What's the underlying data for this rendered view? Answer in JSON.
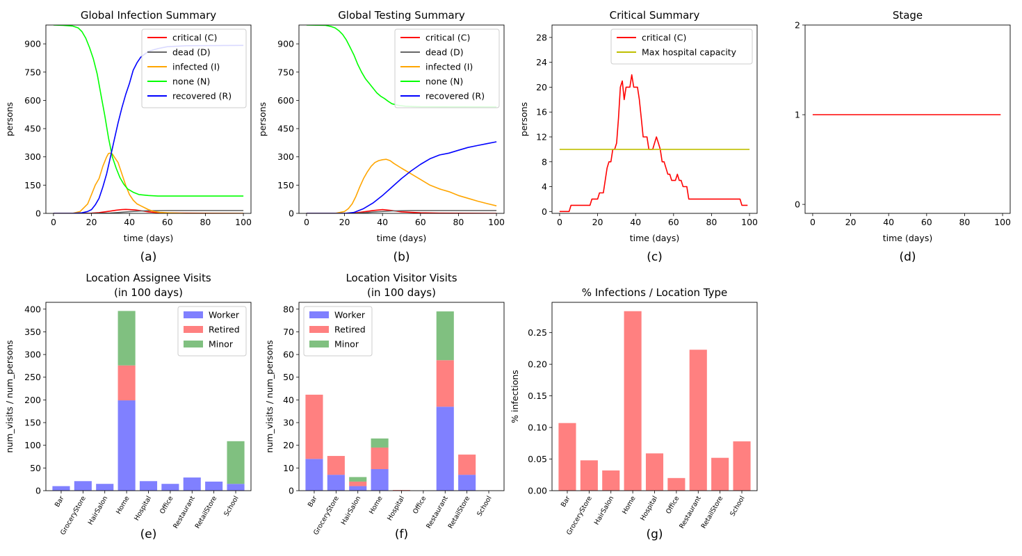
{
  "chart_data": [
    {
      "id": "a",
      "type": "line",
      "title": "Global Infection Summary",
      "xlabel": "time (days)",
      "ylabel": "persons",
      "caption": "(a)",
      "xlim": [
        -4,
        104
      ],
      "ylim": [
        0,
        1000
      ],
      "xticks": [
        0,
        20,
        40,
        60,
        80,
        100
      ],
      "yticks": [
        0,
        150,
        300,
        450,
        600,
        750,
        900
      ],
      "legend_position": "top-right",
      "series": [
        {
          "name": "critical (C)",
          "color": "#ff0000",
          "x": [
            0,
            10,
            20,
            24,
            27,
            30,
            33,
            36,
            38,
            40,
            43,
            46,
            50,
            55,
            60,
            70,
            100
          ],
          "y": [
            0,
            0,
            1,
            4,
            8,
            12,
            17,
            20,
            21,
            20,
            18,
            14,
            8,
            4,
            2,
            1,
            0
          ]
        },
        {
          "name": "dead (D)",
          "color": "#666666",
          "x": [
            0,
            20,
            30,
            35,
            40,
            45,
            50,
            60,
            100
          ],
          "y": [
            0,
            0,
            2,
            5,
            9,
            12,
            14,
            15,
            15
          ]
        },
        {
          "name": "infected (I)",
          "color": "#ffa500",
          "x": [
            0,
            10,
            14,
            16,
            18,
            20,
            22,
            24,
            26,
            28,
            29,
            30,
            31,
            32,
            33,
            34,
            36,
            38,
            40,
            42,
            44,
            46,
            48,
            50,
            53,
            56,
            60,
            65,
            70,
            100
          ],
          "y": [
            0,
            0,
            10,
            30,
            50,
            100,
            150,
            185,
            250,
            300,
            318,
            320,
            315,
            300,
            285,
            270,
            210,
            150,
            100,
            70,
            50,
            40,
            30,
            20,
            10,
            5,
            3,
            1,
            0,
            0
          ]
        },
        {
          "name": "none (N)",
          "color": "#00ff00",
          "x": [
            0,
            5,
            10,
            13,
            15,
            17,
            19,
            21,
            23,
            25,
            27,
            29,
            31,
            33,
            35,
            37,
            39,
            42,
            45,
            50,
            55,
            60,
            100
          ],
          "y": [
            1000,
            998,
            995,
            985,
            965,
            930,
            880,
            820,
            740,
            630,
            520,
            400,
            300,
            240,
            190,
            155,
            130,
            112,
            100,
            95,
            92,
            92,
            92
          ]
        },
        {
          "name": "recovered (R)",
          "color": "#0000ff",
          "x": [
            0,
            10,
            15,
            18,
            20,
            22,
            24,
            26,
            28,
            30,
            32,
            34,
            36,
            38,
            40,
            42,
            44,
            46,
            48,
            50,
            55,
            60,
            70,
            100
          ],
          "y": [
            0,
            0,
            3,
            10,
            20,
            45,
            80,
            140,
            210,
            300,
            390,
            480,
            560,
            630,
            690,
            760,
            800,
            830,
            845,
            860,
            875,
            885,
            890,
            892
          ]
        }
      ]
    },
    {
      "id": "b",
      "type": "line",
      "title": "Global Testing Summary",
      "xlabel": "time (days)",
      "ylabel": "persons",
      "caption": "(b)",
      "xlim": [
        -4,
        104
      ],
      "ylim": [
        0,
        1000
      ],
      "xticks": [
        0,
        20,
        40,
        60,
        80,
        100
      ],
      "yticks": [
        0,
        150,
        300,
        450,
        600,
        750,
        900
      ],
      "legend_position": "top-right",
      "series": [
        {
          "name": "critical (C)",
          "color": "#ff0000",
          "x": [
            0,
            20,
            25,
            30,
            35,
            40,
            45,
            50,
            60,
            70,
            100
          ],
          "y": [
            0,
            0,
            2,
            8,
            15,
            20,
            15,
            8,
            3,
            1,
            0
          ]
        },
        {
          "name": "dead (D)",
          "color": "#666666",
          "x": [
            0,
            25,
            30,
            35,
            40,
            45,
            50,
            55,
            60,
            100
          ],
          "y": [
            0,
            0,
            3,
            7,
            10,
            13,
            14,
            15,
            15,
            15
          ]
        },
        {
          "name": "infected (I)",
          "color": "#ffa500",
          "x": [
            0,
            15,
            20,
            22,
            24,
            26,
            28,
            30,
            32,
            34,
            36,
            38,
            40,
            42,
            44,
            46,
            50,
            55,
            60,
            65,
            70,
            75,
            80,
            85,
            90,
            95,
            100
          ],
          "y": [
            0,
            0,
            10,
            25,
            50,
            90,
            140,
            185,
            220,
            250,
            270,
            280,
            285,
            287,
            280,
            265,
            240,
            210,
            180,
            150,
            130,
            115,
            95,
            80,
            65,
            52,
            40
          ]
        },
        {
          "name": "none (N)",
          "color": "#00ff00",
          "x": [
            0,
            10,
            13,
            15,
            17,
            19,
            21,
            23,
            25,
            27,
            29,
            31,
            33,
            35,
            37,
            39,
            41,
            43,
            45,
            48,
            52,
            56,
            60,
            100
          ],
          "y": [
            1000,
            998,
            992,
            985,
            970,
            950,
            920,
            880,
            840,
            790,
            750,
            715,
            690,
            665,
            640,
            622,
            610,
            595,
            582,
            574,
            569,
            567,
            566,
            565
          ]
        },
        {
          "name": "recovered (R)",
          "color": "#0000ff",
          "x": [
            0,
            20,
            25,
            30,
            35,
            40,
            45,
            50,
            55,
            60,
            65,
            70,
            75,
            80,
            85,
            90,
            95,
            100
          ],
          "y": [
            0,
            0,
            5,
            25,
            55,
            95,
            140,
            185,
            225,
            260,
            290,
            310,
            320,
            335,
            350,
            360,
            370,
            380
          ]
        }
      ]
    },
    {
      "id": "c",
      "type": "line",
      "title": "Critical Summary",
      "xlabel": "time (days)",
      "ylabel": "persons",
      "caption": "(c)",
      "xlim": [
        -4,
        104
      ],
      "ylim": [
        -0.3,
        30
      ],
      "xticks": [
        0,
        20,
        40,
        60,
        80,
        100
      ],
      "yticks": [
        0,
        4,
        8,
        12,
        16,
        20,
        24,
        28
      ],
      "legend_position": "top-right",
      "series": [
        {
          "name": "critical (C)",
          "color": "#ff0000",
          "x": [
            0,
            5,
            6,
            12,
            13,
            16,
            17,
            19,
            20,
            21,
            22,
            23,
            24,
            25,
            26,
            27,
            28,
            29,
            30,
            31,
            32,
            33,
            34,
            35,
            36,
            37,
            38,
            39,
            40,
            41,
            42,
            43,
            44,
            45,
            46,
            47,
            48,
            49,
            50,
            51,
            52,
            53,
            54,
            55,
            56,
            57,
            58,
            59,
            60,
            61,
            62,
            63,
            64,
            65,
            66,
            67,
            68,
            95,
            96,
            99
          ],
          "y": [
            0,
            0,
            1,
            1,
            1,
            1,
            2,
            2,
            2,
            3,
            3,
            3,
            5,
            7,
            8,
            8,
            10,
            10,
            11,
            15,
            20,
            21,
            18,
            20,
            20,
            20,
            22,
            20,
            20,
            20,
            18,
            15,
            12,
            12,
            12,
            10,
            10,
            10,
            11,
            12,
            11,
            10,
            8,
            8,
            7,
            6,
            6,
            5,
            5,
            5,
            6,
            5,
            5,
            4,
            4,
            4,
            2,
            2,
            1,
            1
          ]
        },
        {
          "name": "Max hospital capacity",
          "color": "#bfbf00",
          "x": [
            0,
            100
          ],
          "y": [
            10,
            10
          ]
        }
      ]
    },
    {
      "id": "d",
      "type": "line",
      "title": "Stage",
      "xlabel": "time (days)",
      "ylabel": "",
      "caption": "(d)",
      "xlim": [
        -4,
        104
      ],
      "ylim": [
        -0.1,
        2
      ],
      "xticks": [
        0,
        20,
        40,
        60,
        80,
        100
      ],
      "yticks": [
        0,
        1,
        2
      ],
      "series": [
        {
          "color": "#ff0000",
          "x": [
            0,
            99
          ],
          "y": [
            1,
            1
          ]
        }
      ]
    },
    {
      "id": "e",
      "type": "bar",
      "title": "Location Assignee Visits",
      "subtitle": "(in 100 days)",
      "xlabel": "",
      "ylabel": "num_visits / num_persons",
      "caption": "(e)",
      "ylim": [
        0,
        415
      ],
      "yticks": [
        0,
        50,
        100,
        150,
        200,
        250,
        300,
        350,
        400
      ],
      "legend_position": "top-right",
      "categories": [
        "Bar",
        "GroceryStore",
        "HairSalon",
        "Home",
        "Hospital",
        "Office",
        "Restaurant",
        "RetailStore",
        "School"
      ],
      "series": [
        {
          "name": "Worker",
          "color": "#8080ff",
          "values": [
            10,
            21,
            15,
            199,
            21,
            15,
            29,
            20,
            15
          ]
        },
        {
          "name": "Retired",
          "color": "#ff8080",
          "values": [
            0,
            0,
            0,
            77,
            0,
            0,
            0,
            0,
            0
          ]
        },
        {
          "name": "Minor",
          "color": "#80c080",
          "values": [
            0,
            0,
            0,
            120,
            0,
            0,
            0,
            0,
            94
          ]
        }
      ]
    },
    {
      "id": "f",
      "type": "bar",
      "title": "Location Visitor Visits",
      "subtitle": "(in 100 days)",
      "xlabel": "",
      "ylabel": "num_visits / num_persons",
      "caption": "(f)",
      "ylim": [
        0,
        83
      ],
      "yticks": [
        0,
        10,
        20,
        30,
        40,
        50,
        60,
        70,
        80
      ],
      "legend_position": "top-left",
      "categories": [
        "Bar",
        "GroceryStore",
        "HairSalon",
        "Home",
        "Hospital",
        "Office",
        "Restaurant",
        "RetailStore",
        "School"
      ],
      "series": [
        {
          "name": "Worker",
          "color": "#8080ff",
          "values": [
            14,
            7,
            2,
            9.5,
            0,
            0,
            37,
            7,
            0
          ]
        },
        {
          "name": "Retired",
          "color": "#ff8080",
          "values": [
            28.3,
            8.3,
            2,
            9.5,
            0.3,
            0,
            20.5,
            8.9,
            0
          ]
        },
        {
          "name": "Minor",
          "color": "#80c080",
          "values": [
            0,
            0,
            2,
            4,
            0,
            0,
            21.5,
            0,
            0
          ]
        }
      ]
    },
    {
      "id": "g",
      "type": "bar",
      "title": "% Infections / Location Type",
      "xlabel": "",
      "ylabel": "% infections",
      "caption": "(g)",
      "ylim": [
        0,
        0.298
      ],
      "yticks": [
        0.0,
        0.05,
        0.1,
        0.15,
        0.2,
        0.25
      ],
      "ytick_labels": [
        "0.00",
        "0.05",
        "0.10",
        "0.15",
        "0.20",
        "0.25"
      ],
      "categories": [
        "Bar",
        "GroceryStore",
        "HairSalon",
        "Home",
        "Hospital",
        "Office",
        "Restaurant",
        "RetailStore",
        "School"
      ],
      "series": [
        {
          "color": "#ff8080",
          "values": [
            0.107,
            0.048,
            0.032,
            0.284,
            0.059,
            0.02,
            0.223,
            0.052,
            0.078
          ]
        }
      ]
    }
  ]
}
